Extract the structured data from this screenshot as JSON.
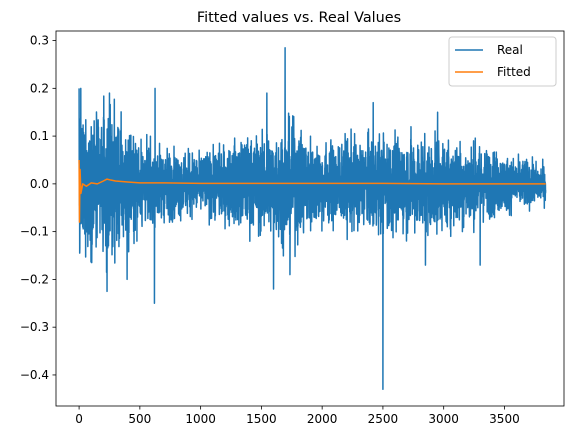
{
  "chart_data": {
    "type": "line",
    "title": "Fitted values vs. Real Values",
    "xlabel": "",
    "ylabel": "",
    "xlim": [
      -190,
      3990
    ],
    "ylim": [
      -0.465,
      0.32
    ],
    "xticks": [
      0,
      500,
      1000,
      1500,
      2000,
      2500,
      3000,
      3500
    ],
    "xtick_labels": [
      "0",
      "500",
      "1000",
      "1500",
      "2000",
      "2500",
      "3000",
      "3500"
    ],
    "yticks": [
      -0.4,
      -0.3,
      -0.2,
      -0.1,
      0.0,
      0.1,
      0.2,
      0.3
    ],
    "ytick_labels": [
      "−0.4",
      "−0.3",
      "−0.2",
      "−0.1",
      "0.0",
      "0.1",
      "0.2",
      "0.3"
    ],
    "grid": false,
    "legend_position": "top-right",
    "series": [
      {
        "name": "Real",
        "color": "#1f77b4",
        "n_points": 3840,
        "approx_envelope": {
          "x": [
            0,
            250,
            500,
            750,
            1000,
            1250,
            1500,
            1750,
            2000,
            2250,
            2500,
            2750,
            3000,
            3250,
            3500,
            3840
          ],
          "upper": [
            0.2,
            0.19,
            0.11,
            0.08,
            0.07,
            0.1,
            0.13,
            0.15,
            0.1,
            0.12,
            0.11,
            0.13,
            0.12,
            0.1,
            0.07,
            0.05
          ],
          "lower": [
            -0.14,
            -0.2,
            -0.12,
            -0.1,
            -0.09,
            -0.11,
            -0.13,
            -0.16,
            -0.11,
            -0.12,
            -0.14,
            -0.12,
            -0.12,
            -0.11,
            -0.08,
            -0.05
          ]
        },
        "spikes": [
          {
            "x": 0,
            "y": 0.2
          },
          {
            "x": 14,
            "y": 0.2
          },
          {
            "x": 5,
            "y": -0.145
          },
          {
            "x": 230,
            "y": -0.225
          },
          {
            "x": 250,
            "y": 0.19
          },
          {
            "x": 395,
            "y": -0.2
          },
          {
            "x": 620,
            "y": -0.25
          },
          {
            "x": 625,
            "y": 0.2
          },
          {
            "x": 1545,
            "y": 0.19
          },
          {
            "x": 1600,
            "y": -0.22
          },
          {
            "x": 1695,
            "y": 0.285
          },
          {
            "x": 1735,
            "y": -0.19
          },
          {
            "x": 2500,
            "y": -0.43
          },
          {
            "x": 2505,
            "y": 0.07
          },
          {
            "x": 2420,
            "y": 0.17
          },
          {
            "x": 2850,
            "y": -0.17
          },
          {
            "x": 2950,
            "y": 0.15
          },
          {
            "x": 3300,
            "y": -0.17
          }
        ]
      },
      {
        "name": "Fitted",
        "color": "#ff7f0e",
        "x": [
          0,
          3,
          8,
          15,
          30,
          60,
          100,
          150,
          200,
          230,
          260,
          300,
          400,
          500,
          700,
          1000,
          1500,
          2000,
          2500,
          3000,
          3500,
          3840
        ],
        "values": [
          0.05,
          -0.08,
          0.03,
          -0.02,
          0.0,
          -0.005,
          0.002,
          0.0,
          0.006,
          0.01,
          0.008,
          0.006,
          0.004,
          0.002,
          0.002,
          0.001,
          0.001,
          0.001,
          0.001,
          0.0,
          0.0,
          0.0
        ]
      }
    ]
  }
}
